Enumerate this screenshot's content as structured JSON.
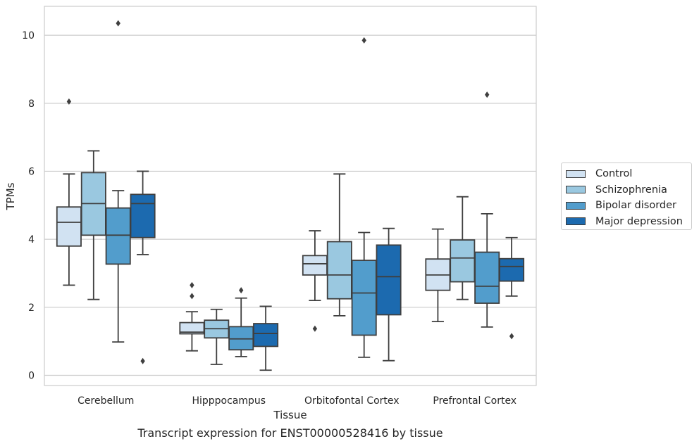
{
  "caption": "Transcript expression for ENST00000528416 by tissue",
  "legend": {
    "items": [
      {
        "label": "Control",
        "color": "#d1e2f2"
      },
      {
        "label": "Schizophrenia",
        "color": "#9ac8e0"
      },
      {
        "label": "Bipolar disorder",
        "color": "#529dcc"
      },
      {
        "label": "Major depression",
        "color": "#1c6aaf"
      }
    ]
  },
  "chart_data": {
    "type": "boxplot",
    "xlabel": "Tissue",
    "ylabel": "TPMs",
    "ylim": [
      -0.3,
      10.85
    ],
    "yticks": [
      0,
      2,
      4,
      6,
      8,
      10
    ],
    "grid": true,
    "legend_position": "right",
    "categories": [
      "Cerebellum",
      "Hipppocampus",
      "Orbitofontal Cortex",
      "Prefrontal Cortex"
    ],
    "series": [
      {
        "name": "Control",
        "color": "#d1e2f2",
        "boxes": [
          {
            "whislo": 2.65,
            "q1": 3.8,
            "med": 4.5,
            "q3": 4.95,
            "whishi": 5.92,
            "fliers": [
              8.05
            ]
          },
          {
            "whislo": 0.72,
            "q1": 1.22,
            "med": 1.27,
            "q3": 1.55,
            "whishi": 1.87,
            "fliers": [
              2.65,
              2.33
            ]
          },
          {
            "whislo": 2.2,
            "q1": 2.95,
            "med": 3.28,
            "q3": 3.52,
            "whishi": 4.25,
            "fliers": [
              1.37
            ]
          },
          {
            "whislo": 1.58,
            "q1": 2.5,
            "med": 2.95,
            "q3": 3.42,
            "whishi": 4.3,
            "fliers": []
          }
        ]
      },
      {
        "name": "Schizophrenia",
        "color": "#9ac8e0",
        "boxes": [
          {
            "whislo": 2.23,
            "q1": 4.12,
            "med": 5.05,
            "q3": 5.96,
            "whishi": 6.6,
            "fliers": []
          },
          {
            "whislo": 0.32,
            "q1": 1.1,
            "med": 1.37,
            "q3": 1.62,
            "whishi": 1.94,
            "fliers": []
          },
          {
            "whislo": 1.75,
            "q1": 2.25,
            "med": 2.95,
            "q3": 3.93,
            "whishi": 5.92,
            "fliers": []
          },
          {
            "whislo": 2.23,
            "q1": 2.75,
            "med": 3.45,
            "q3": 3.98,
            "whishi": 5.25,
            "fliers": []
          }
        ]
      },
      {
        "name": "Bipolar disorder",
        "color": "#529dcc",
        "boxes": [
          {
            "whislo": 0.98,
            "q1": 3.27,
            "med": 4.12,
            "q3": 4.92,
            "whishi": 5.43,
            "fliers": [
              10.35
            ]
          },
          {
            "whislo": 0.55,
            "q1": 0.75,
            "med": 1.07,
            "q3": 1.43,
            "whishi": 2.27,
            "fliers": [
              2.5
            ]
          },
          {
            "whislo": 0.53,
            "q1": 1.18,
            "med": 2.42,
            "q3": 3.38,
            "whishi": 4.2,
            "fliers": [
              9.85
            ]
          },
          {
            "whislo": 1.42,
            "q1": 2.12,
            "med": 2.62,
            "q3": 3.62,
            "whishi": 4.75,
            "fliers": [
              8.25
            ]
          }
        ]
      },
      {
        "name": "Major depression",
        "color": "#1c6aaf",
        "boxes": [
          {
            "whislo": 3.55,
            "q1": 4.05,
            "med": 5.05,
            "q3": 5.32,
            "whishi": 6.0,
            "fliers": [
              0.42
            ]
          },
          {
            "whislo": 0.15,
            "q1": 0.85,
            "med": 1.23,
            "q3": 1.52,
            "whishi": 2.03,
            "fliers": []
          },
          {
            "whislo": 0.43,
            "q1": 1.78,
            "med": 2.9,
            "q3": 3.83,
            "whishi": 4.32,
            "fliers": []
          },
          {
            "whislo": 2.33,
            "q1": 2.77,
            "med": 3.2,
            "q3": 3.43,
            "whishi": 4.05,
            "fliers": [
              1.15
            ]
          }
        ]
      }
    ]
  }
}
